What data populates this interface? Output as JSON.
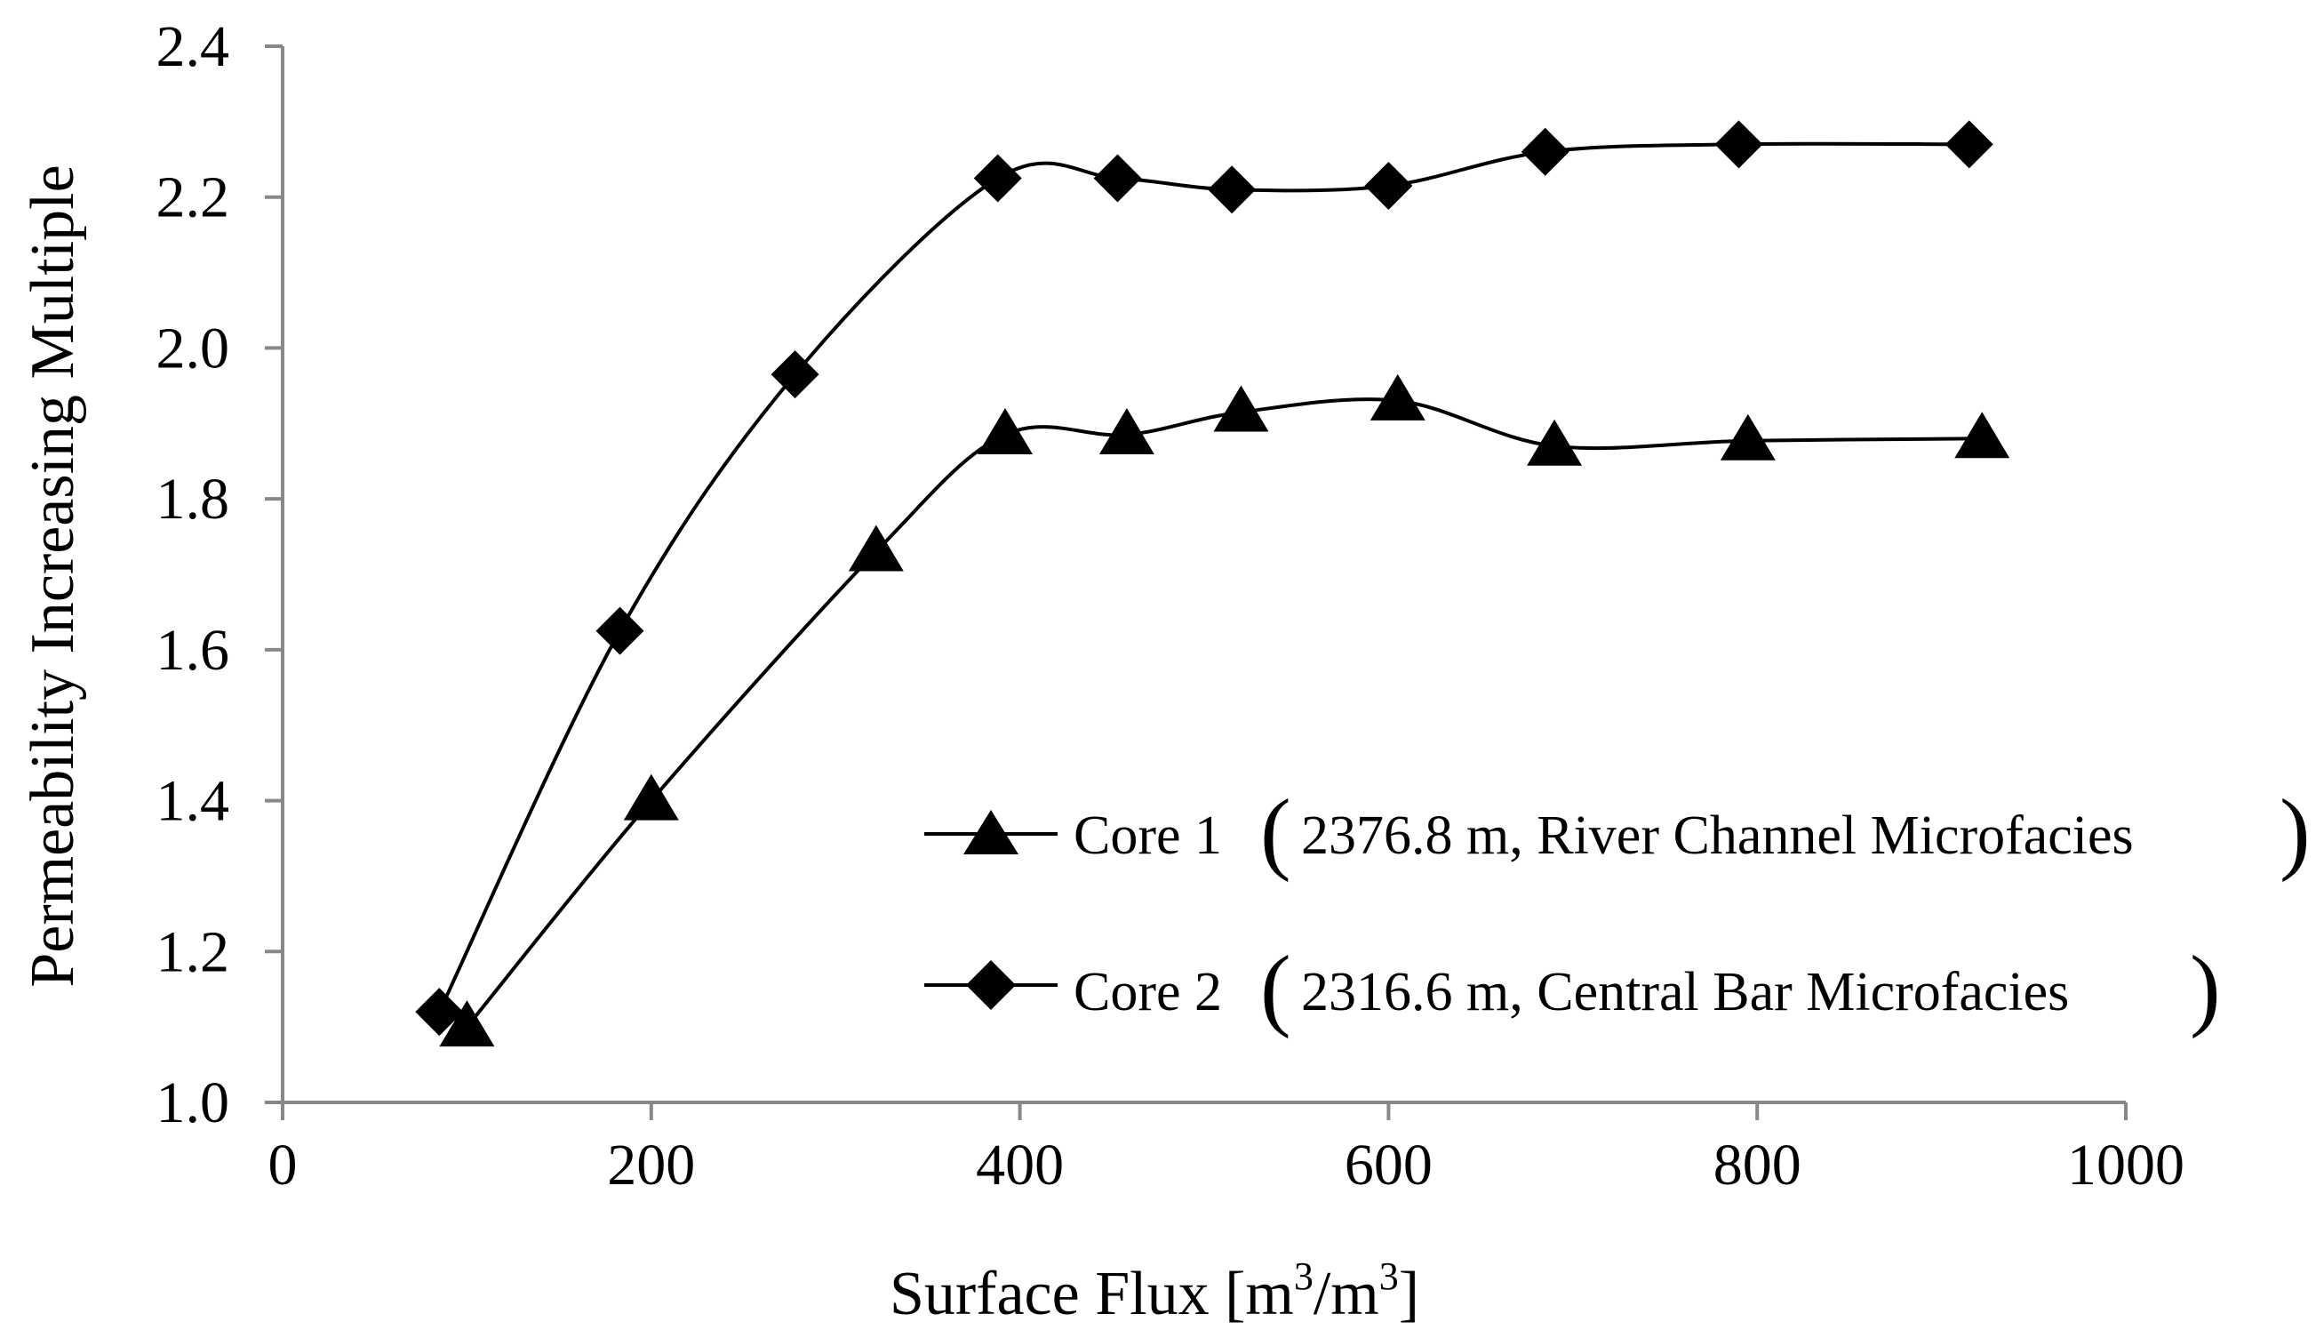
{
  "chart_data": {
    "type": "line",
    "title": "",
    "xlabel": "Surface Flux [m³/m³]",
    "ylabel": "Permeability  Increasing Multiple",
    "xlim": [
      0,
      1000
    ],
    "ylim": [
      1.0,
      2.4
    ],
    "xticks": [
      "0",
      "200",
      "400",
      "600",
      "800",
      "1000"
    ],
    "yticks": [
      "1.0",
      "1.2",
      "1.4",
      "1.6",
      "1.8",
      "2.0",
      "2.2",
      "2.4"
    ],
    "xlabel_parts": {
      "main": "Surface Flux [m",
      "sup1": "3",
      "mid": "/m",
      "sup2": "3",
      "end": "]"
    },
    "legend_position": "lower-right",
    "series": [
      {
        "name": "Core 1（2376.8 m,  River Channel Microfacies）",
        "legend_label": "Core 1",
        "legend_detail": "2376.8 m,  River Channel Microfacies",
        "marker": "triangle",
        "x": [
          100,
          200,
          322,
          392,
          458,
          520,
          605,
          690,
          795,
          922
        ],
        "y": [
          1.1,
          1.4,
          1.73,
          1.885,
          1.885,
          1.915,
          1.93,
          1.87,
          1.877,
          1.88
        ]
      },
      {
        "name": "Core 2（2316.6 m, Central Bar Microfacies）",
        "legend_label": "Core 2",
        "legend_detail": "2316.6 m, Central Bar Microfacies",
        "marker": "diamond",
        "x": [
          85,
          183,
          278,
          388,
          453,
          515,
          600,
          685,
          790,
          915
        ],
        "y": [
          1.12,
          1.625,
          1.965,
          2.225,
          2.225,
          2.21,
          2.215,
          2.26,
          2.27,
          2.27
        ]
      }
    ]
  }
}
